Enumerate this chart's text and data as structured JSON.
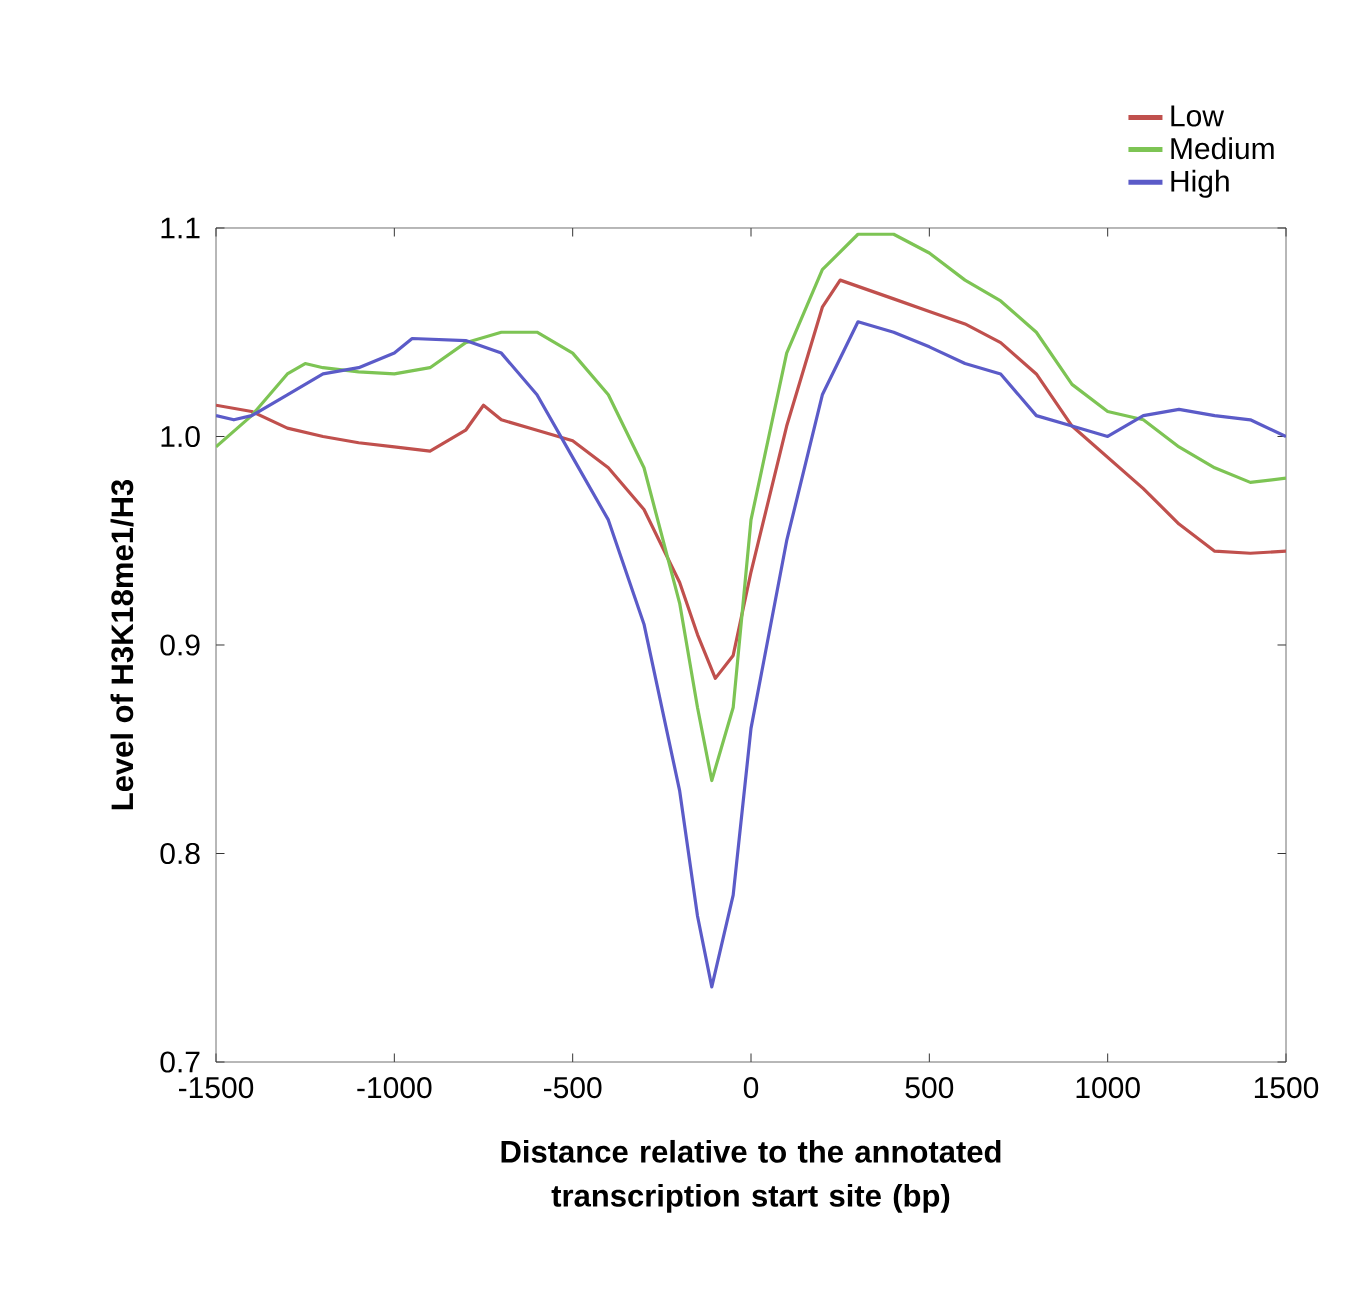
{
  "chart_data": {
    "type": "line",
    "xlabel": "Distance relative to the annotated transcription start site (bp)",
    "ylabel": "Level of H3K18me1/H3",
    "xlim": [
      -1500,
      1500
    ],
    "xticks": [
      -1500,
      -1000,
      -500,
      0,
      500,
      1000,
      1500
    ],
    "ylim": [
      0.7,
      1.1
    ],
    "yticks": [
      {
        "value": 0.7,
        "label": "0.7"
      },
      {
        "value": 0.8,
        "label": "0.8"
      },
      {
        "value": 0.9,
        "label": "0.9"
      },
      {
        "value": 1.0,
        "label": "1.0"
      },
      {
        "value": 1.1,
        "label": "1.1"
      }
    ],
    "legend": "top right",
    "grid": false,
    "marker": "none",
    "line_style": "solid",
    "series": [
      {
        "name": "Low",
        "color": "#c0504d",
        "x": [
          -1500,
          -1400,
          -1300,
          -1200,
          -1100,
          -1000,
          -900,
          -800,
          -750,
          -700,
          -600,
          -500,
          -400,
          -300,
          -200,
          -150,
          -100,
          -50,
          0,
          100,
          200,
          250,
          300,
          400,
          500,
          600,
          700,
          800,
          900,
          1000,
          1100,
          1200,
          1300,
          1400,
          1500
        ],
        "values": [
          1.015,
          1.012,
          1.004,
          1.0,
          0.997,
          0.995,
          0.993,
          1.003,
          1.015,
          1.008,
          1.003,
          0.998,
          0.985,
          0.965,
          0.93,
          0.905,
          0.884,
          0.895,
          0.935,
          1.005,
          1.062,
          1.075,
          1.072,
          1.066,
          1.06,
          1.054,
          1.045,
          1.03,
          1.005,
          0.99,
          0.975,
          0.958,
          0.945,
          0.944,
          0.945
        ]
      },
      {
        "name": "Medium",
        "color": "#7dc454",
        "x": [
          -1500,
          -1400,
          -1300,
          -1250,
          -1200,
          -1100,
          -1000,
          -900,
          -800,
          -700,
          -600,
          -500,
          -400,
          -300,
          -200,
          -150,
          -110,
          -50,
          0,
          100,
          200,
          300,
          400,
          500,
          600,
          700,
          800,
          900,
          1000,
          1100,
          1200,
          1300,
          1400,
          1500
        ],
        "values": [
          0.995,
          1.01,
          1.03,
          1.035,
          1.033,
          1.031,
          1.03,
          1.033,
          1.045,
          1.05,
          1.05,
          1.04,
          1.02,
          0.985,
          0.92,
          0.87,
          0.835,
          0.87,
          0.96,
          1.04,
          1.08,
          1.097,
          1.097,
          1.088,
          1.075,
          1.065,
          1.05,
          1.025,
          1.012,
          1.008,
          0.995,
          0.985,
          0.978,
          0.98
        ]
      },
      {
        "name": "High",
        "color": "#5b5bc8",
        "x": [
          -1500,
          -1450,
          -1400,
          -1300,
          -1200,
          -1100,
          -1000,
          -950,
          -800,
          -700,
          -600,
          -500,
          -400,
          -300,
          -200,
          -150,
          -110,
          -50,
          0,
          100,
          200,
          300,
          400,
          500,
          600,
          700,
          800,
          900,
          1000,
          1100,
          1200,
          1300,
          1400,
          1500
        ],
        "values": [
          1.01,
          1.008,
          1.01,
          1.02,
          1.03,
          1.033,
          1.04,
          1.047,
          1.046,
          1.04,
          1.02,
          0.99,
          0.96,
          0.91,
          0.83,
          0.77,
          0.736,
          0.78,
          0.86,
          0.95,
          1.02,
          1.055,
          1.05,
          1.043,
          1.035,
          1.03,
          1.01,
          1.005,
          1.0,
          1.01,
          1.013,
          1.01,
          1.008,
          1.0
        ]
      }
    ]
  }
}
